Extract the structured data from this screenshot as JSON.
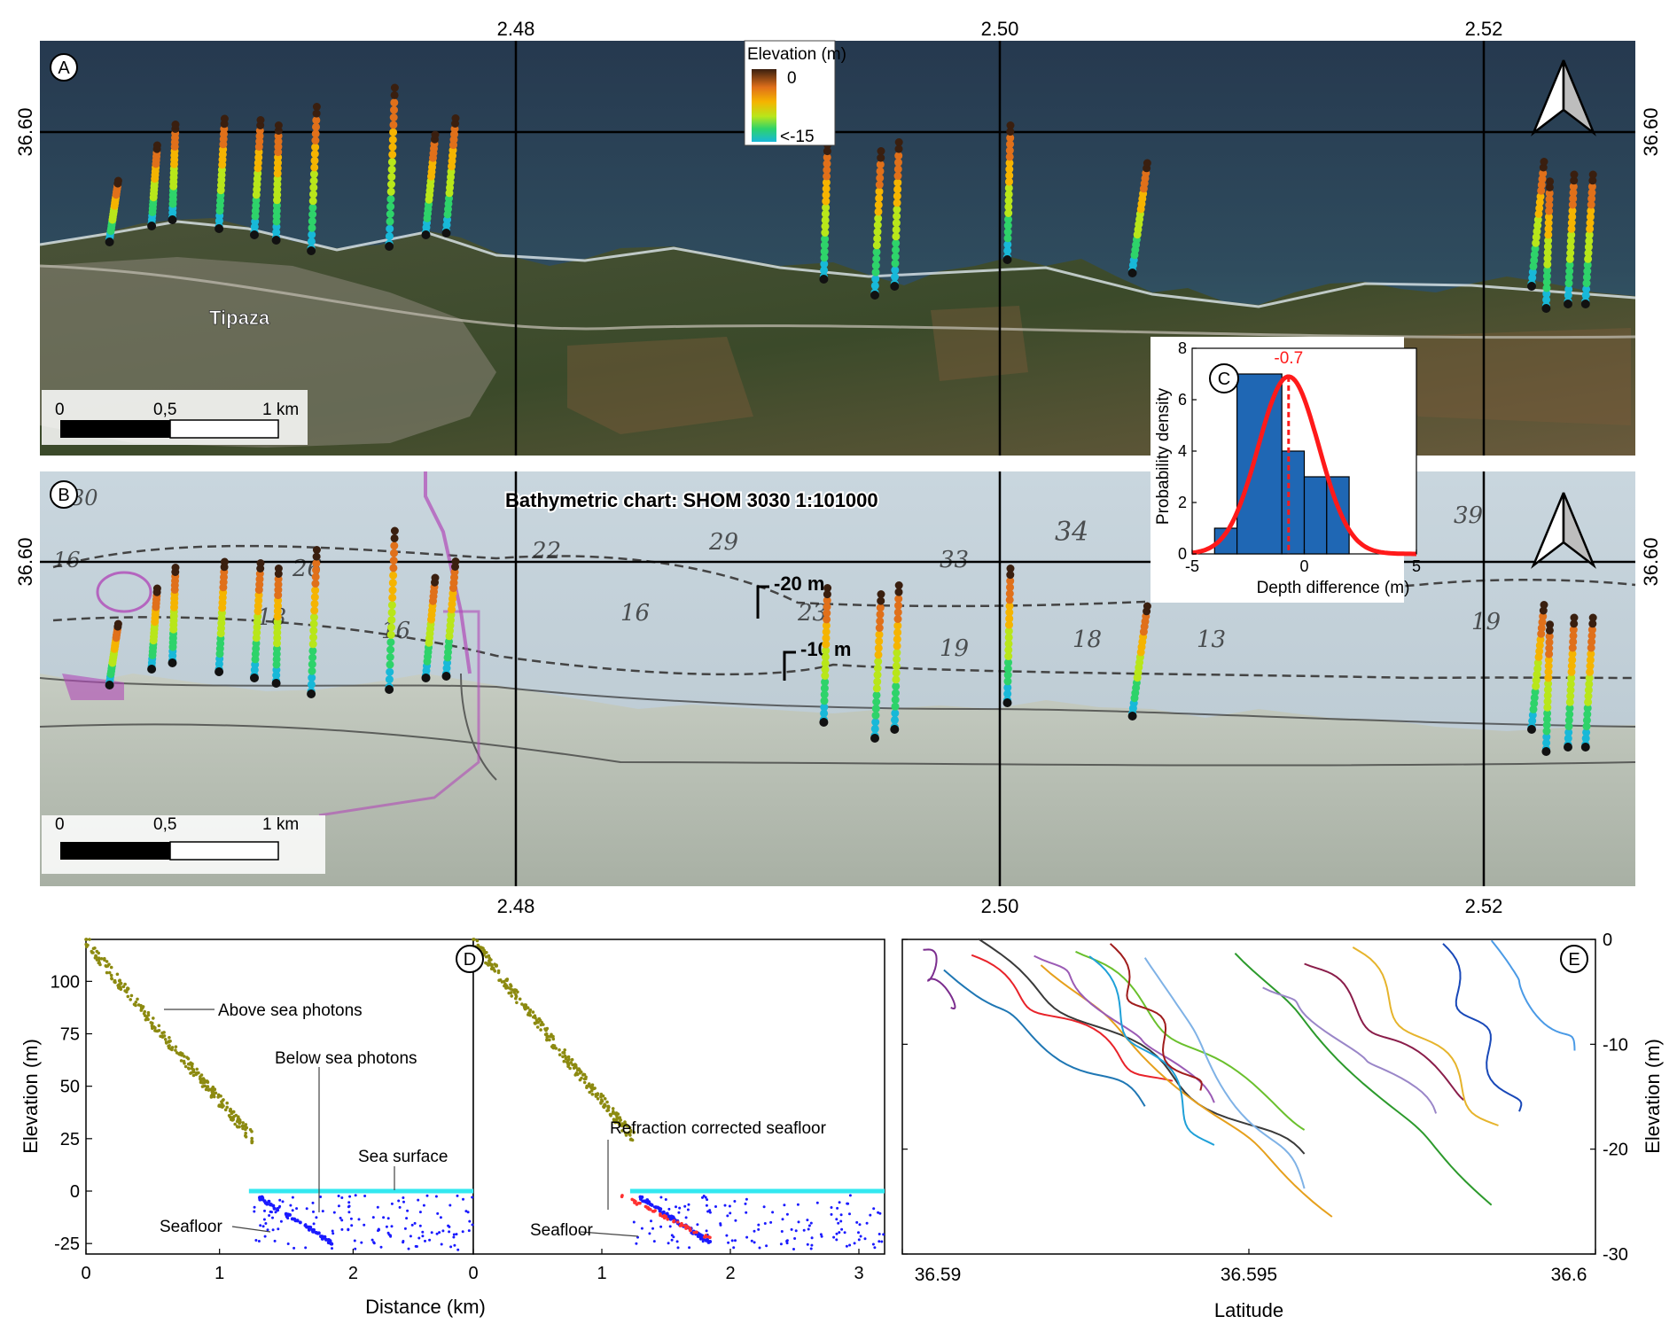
{
  "panels": {
    "A": {
      "label": "A",
      "place": "Tipaza"
    },
    "B": {
      "label": "B",
      "title": "Bathymetric chart: SHOM 3030 1:101000",
      "contour_20": "-20 m",
      "contour_10": "-10 m"
    },
    "C": {
      "label": "C"
    },
    "D": {
      "label": "D"
    },
    "E": {
      "label": "E"
    }
  },
  "map_axes": {
    "lon_ticks": [
      "2.48",
      "2.50",
      "2.52"
    ],
    "lat_tick": "36.60"
  },
  "legend": {
    "title": "Elevation (m)",
    "max": "0",
    "min": "<-15",
    "colors": [
      "#3a1f0f",
      "#e0701a",
      "#f5b400",
      "#b8e61a",
      "#2ed36a",
      "#18b8d8"
    ]
  },
  "scale_bar": {
    "ticks": [
      "0",
      "0,5",
      "1 km"
    ]
  },
  "chart_data": [
    {
      "type": "bar",
      "panel": "C",
      "title": "",
      "xlabel": "Depth difference (m)",
      "ylabel": "Probability density",
      "x_ticks": [
        -5,
        0,
        5
      ],
      "y_ticks": [
        0,
        2,
        4,
        6,
        8
      ],
      "xlim": [
        -5,
        5
      ],
      "ylim": [
        0,
        8
      ],
      "bins": [
        [
          -4,
          -3
        ],
        [
          -3,
          -1
        ],
        [
          -1,
          0
        ],
        [
          0,
          1
        ],
        [
          1,
          2
        ]
      ],
      "values": [
        1,
        7,
        4,
        3,
        3
      ],
      "mean": -0.7,
      "mean_label": "-0.7",
      "fit": {
        "type": "normal",
        "peak": 6.9
      },
      "colors": {
        "bar": "#1f67b4",
        "fit": "#ff1a1a"
      }
    },
    {
      "type": "scatter",
      "panel": "D",
      "xlabel": "Distance (km)",
      "ylabel": "Elevation (m)",
      "ylim": [
        -30,
        120
      ],
      "y_ticks": [
        -25,
        0,
        25,
        50,
        75,
        100
      ],
      "left_x_ticks": [
        0,
        1,
        2,
        0
      ],
      "right_x_ticks": [
        1,
        2,
        3
      ],
      "annotations": {
        "above": "Above sea photons",
        "below": "Below sea photons",
        "surface": "Sea surface",
        "seafloor": "Seafloor",
        "refraction": "Refraction corrected seafloor"
      },
      "colors": {
        "land": "#8c8a10",
        "surface": "#33e8f0",
        "below": "#1a1aff",
        "corrected": "#ff3030"
      }
    },
    {
      "type": "line",
      "panel": "E",
      "xlabel": "Latitude",
      "ylabel": "Elevation (m)",
      "xlim": [
        36.59,
        36.6
      ],
      "ylim": [
        -30,
        0
      ],
      "x_ticks": [
        "36.59",
        "36.595",
        "36.6"
      ],
      "y_ticks": [
        "0",
        "-10",
        "-20",
        "-30"
      ],
      "series": [
        {
          "color": "#7b2d8e",
          "start": [
            36.5903,
            -1
          ],
          "end": [
            36.5907,
            -6.5
          ]
        },
        {
          "color": "#e8232a",
          "start": [
            36.591,
            -2
          ],
          "end": [
            36.5939,
            -14
          ]
        },
        {
          "color": "#3a3a3a",
          "start": [
            36.5911,
            -0.5
          ],
          "end": [
            36.5958,
            -21
          ]
        },
        {
          "color": "#1f77b4",
          "start": [
            36.5906,
            -3
          ],
          "end": [
            36.5935,
            -16
          ]
        },
        {
          "color": "#e6a01c",
          "start": [
            36.592,
            -2
          ],
          "end": [
            36.5962,
            -26
          ]
        },
        {
          "color": "#9b5bb5",
          "start": [
            36.5919,
            -1
          ],
          "end": [
            36.5945,
            -15
          ]
        },
        {
          "color": "#6ac02d",
          "start": [
            36.5925,
            -1
          ],
          "end": [
            36.5958,
            -18
          ]
        },
        {
          "color": "#1fa0d8",
          "start": [
            36.5927,
            -2
          ],
          "end": [
            36.5945,
            -20
          ]
        },
        {
          "color": "#a01c1c",
          "start": [
            36.593,
            -1
          ],
          "end": [
            36.5943,
            -15
          ]
        },
        {
          "color": "#7fb2e6",
          "start": [
            36.5935,
            -2
          ],
          "end": [
            36.5958,
            -24
          ]
        },
        {
          "color": "#2c9a2c",
          "start": [
            36.5948,
            -1
          ],
          "end": [
            36.5985,
            -25
          ]
        },
        {
          "color": "#9a86c8",
          "start": [
            36.5952,
            -4
          ],
          "end": [
            36.5977,
            -16
          ]
        },
        {
          "color": "#8a1d4a",
          "start": [
            36.5958,
            -2
          ],
          "end": [
            36.5981,
            -15
          ]
        },
        {
          "color": "#e6b42c",
          "start": [
            36.5965,
            -1
          ],
          "end": [
            36.5986,
            -18
          ]
        },
        {
          "color": "#1848b8",
          "start": [
            36.5978,
            -1
          ],
          "end": [
            36.5989,
            -17
          ]
        },
        {
          "color": "#4a9ae6",
          "start": [
            36.5985,
            -0.5
          ],
          "end": [
            36.5997,
            -11
          ]
        }
      ]
    }
  ]
}
